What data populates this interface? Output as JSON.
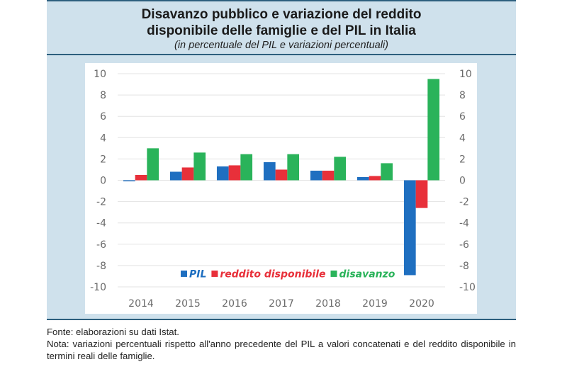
{
  "header": {
    "title_line1": "Disavanzo pubblico e variazione del reddito",
    "title_line2": "disponibile delle famiglie e del PIL in Italia",
    "subtitle": "(in percentuale del PIL e variazioni percentuali)"
  },
  "notes": {
    "source": "Fonte: elaborazioni su dati Istat.",
    "note": "Nota: variazioni percentuali rispetto all'anno precedente del PIL a valori concatenati e del reddito disponibile in termini reali delle famiglie."
  },
  "chart_data": {
    "type": "bar",
    "title": "Disavanzo pubblico e variazione del reddito disponibile delle famiglie e del PIL in Italia",
    "subtitle": "(in percentuale del PIL e variazioni percentuali)",
    "xlabel": "",
    "ylabel": "",
    "categories": [
      "2014",
      "2015",
      "2016",
      "2017",
      "2018",
      "2019",
      "2020"
    ],
    "series": [
      {
        "name": "PIL",
        "color": "#1f6fc0",
        "values": [
          -0.1,
          0.8,
          1.3,
          1.7,
          0.9,
          0.3,
          -8.9
        ]
      },
      {
        "name": "reddito disponibile",
        "color": "#e8303a",
        "values": [
          0.5,
          1.2,
          1.4,
          1.0,
          0.9,
          0.4,
          -2.6
        ]
      },
      {
        "name": "disavanzo",
        "color": "#2ab35a",
        "values": [
          3.0,
          2.6,
          2.45,
          2.45,
          2.2,
          1.6,
          9.5
        ]
      }
    ],
    "ylim": [
      -10,
      10
    ],
    "yticks": [
      "10",
      "8",
      "6",
      "4",
      "2",
      "0",
      "-2",
      "-4",
      "-6",
      "-8",
      "-10"
    ],
    "ytick_values": [
      10,
      8,
      6,
      4,
      2,
      0,
      -2,
      -4,
      -6,
      -8,
      -10
    ],
    "secondary_yaxis": true,
    "grid": true,
    "legend_position": "bottom-inside"
  }
}
